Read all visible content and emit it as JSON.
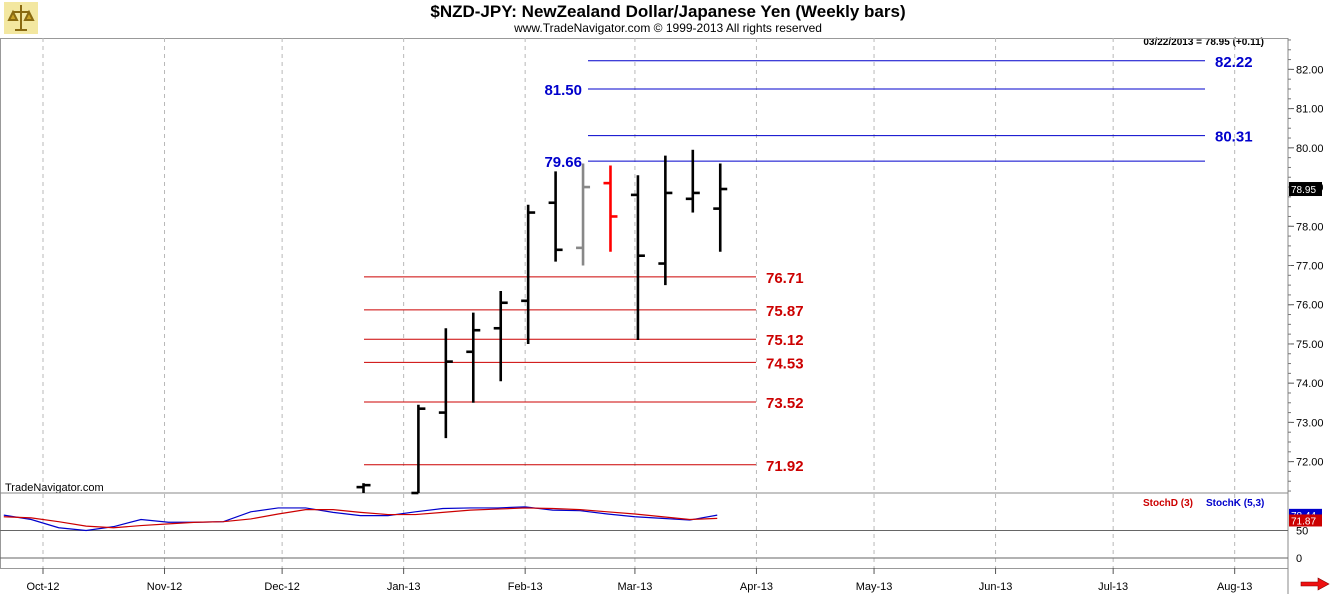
{
  "header": {
    "title": "$NZD-JPY:  NewZealand Dollar/Japanese Yen  (Weekly bars)",
    "subtitle": "www.TradeNavigator.com © 1999-2013 All rights reserved",
    "quote": "03/22/2013 = 78.95 (+0.11)",
    "brand": "TradeNavigator.com"
  },
  "colors": {
    "up_bar": "#000000",
    "down_bar": "#ff0000",
    "gray_bar": "#888888",
    "resistance": "#0000cc",
    "support": "#cc0000",
    "grid": "#b8b8b8",
    "stochD": "#cc0000",
    "stochK": "#0000cc"
  },
  "chart_data": [
    {
      "type": "bar",
      "subtype": "ohlc",
      "title": "$NZD-JPY:  NewZealand Dollar/Japanese Yen  (Weekly bars)",
      "x_ticks": [
        "Oct-12",
        "Nov-12",
        "Dec-12",
        "Jan-13",
        "Feb-13",
        "Mar-13",
        "Apr-13",
        "May-13",
        "Jun-13",
        "Jul-13",
        "Aug-13"
      ],
      "y_ticks": [
        "72.00",
        "73.00",
        "74.00",
        "75.00",
        "76.00",
        "77.00",
        "78.00",
        "79.00",
        "80.00",
        "81.00",
        "82.00"
      ],
      "ylim": [
        71.2,
        82.8
      ],
      "last_price": "78.95",
      "grid": true,
      "bars": [
        {
          "date": "2012-12-21",
          "open": 71.35,
          "high": 71.45,
          "low": 71.2,
          "close": 71.4,
          "color": "black"
        },
        {
          "date": "2013-01-04",
          "open": 71.2,
          "high": 73.45,
          "low": 71.2,
          "close": 73.35,
          "color": "black"
        },
        {
          "date": "2013-01-11",
          "open": 73.25,
          "high": 75.4,
          "low": 72.6,
          "close": 74.55,
          "color": "black"
        },
        {
          "date": "2013-01-18",
          "open": 74.8,
          "high": 75.8,
          "low": 73.5,
          "close": 75.35,
          "color": "black"
        },
        {
          "date": "2013-01-25",
          "open": 75.4,
          "high": 76.35,
          "low": 74.05,
          "close": 76.05,
          "color": "black"
        },
        {
          "date": "2013-02-01",
          "open": 76.1,
          "high": 78.55,
          "low": 75.0,
          "close": 78.35,
          "color": "black"
        },
        {
          "date": "2013-02-08",
          "open": 78.6,
          "high": 79.4,
          "low": 77.1,
          "close": 77.4,
          "color": "black"
        },
        {
          "date": "2013-02-15",
          "open": 77.45,
          "high": 79.6,
          "low": 77.0,
          "close": 79.0,
          "color": "gray"
        },
        {
          "date": "2013-02-22",
          "open": 79.1,
          "high": 79.55,
          "low": 77.35,
          "close": 78.25,
          "color": "red"
        },
        {
          "date": "2013-03-01",
          "open": 78.8,
          "high": 79.3,
          "low": 75.1,
          "close": 77.25,
          "color": "black"
        },
        {
          "date": "2013-03-08",
          "open": 77.05,
          "high": 79.8,
          "low": 76.5,
          "close": 78.85,
          "color": "black"
        },
        {
          "date": "2013-03-15",
          "open": 78.7,
          "high": 79.95,
          "low": 78.35,
          "close": 78.85,
          "color": "black"
        },
        {
          "date": "2013-03-22",
          "open": 78.45,
          "high": 79.6,
          "low": 77.35,
          "close": 78.95,
          "color": "black"
        }
      ],
      "levels": [
        {
          "value": 82.22,
          "label": "82.22",
          "color": "blue"
        },
        {
          "value": 81.5,
          "label": "81.50",
          "color": "blue"
        },
        {
          "value": 80.31,
          "label": "80.31",
          "color": "blue"
        },
        {
          "value": 79.66,
          "label": "79.66",
          "color": "blue"
        },
        {
          "value": 76.71,
          "label": "76.71",
          "color": "red"
        },
        {
          "value": 75.87,
          "label": "75.87",
          "color": "red"
        },
        {
          "value": 75.12,
          "label": "75.12",
          "color": "red"
        },
        {
          "value": 74.53,
          "label": "74.53",
          "color": "red"
        },
        {
          "value": 73.52,
          "label": "73.52",
          "color": "red"
        },
        {
          "value": 71.92,
          "label": "71.92",
          "color": "red"
        }
      ]
    },
    {
      "type": "line",
      "title": "",
      "y_ticks": [
        "50",
        "0"
      ],
      "ylim": [
        0,
        100
      ],
      "legend": [
        "StochD (3)",
        "StochK (5,3)"
      ],
      "last_values": {
        "stochK": "78.44",
        "stochD": "71.87"
      },
      "x": [
        "2012-09-21",
        "2012-09-28",
        "2012-10-05",
        "2012-10-12",
        "2012-10-19",
        "2012-10-26",
        "2012-11-02",
        "2012-11-09",
        "2012-11-16",
        "2012-11-23",
        "2012-11-30",
        "2012-12-07",
        "2012-12-14",
        "2012-12-21",
        "2012-12-28",
        "2013-01-04",
        "2013-01-11",
        "2013-01-18",
        "2013-01-25",
        "2013-02-01",
        "2013-02-08",
        "2013-02-15",
        "2013-02-22",
        "2013-03-01",
        "2013-03-08",
        "2013-03-15",
        "2013-03-22"
      ],
      "series": [
        {
          "name": "StochK (5,3)",
          "color": "blue",
          "values": [
            78,
            70,
            55,
            50,
            57,
            70,
            65,
            65,
            66,
            84,
            91,
            91,
            83,
            77,
            77,
            84,
            90,
            91,
            91,
            93,
            87,
            86,
            80,
            75,
            72,
            69,
            78
          ]
        },
        {
          "name": "StochD (3)",
          "color": "red",
          "values": [
            75,
            73,
            66,
            58,
            55,
            59,
            62,
            65,
            66,
            71,
            80,
            88,
            88,
            83,
            79,
            79,
            83,
            87,
            89,
            91,
            90,
            88,
            84,
            80,
            75,
            70,
            72
          ]
        }
      ]
    }
  ]
}
